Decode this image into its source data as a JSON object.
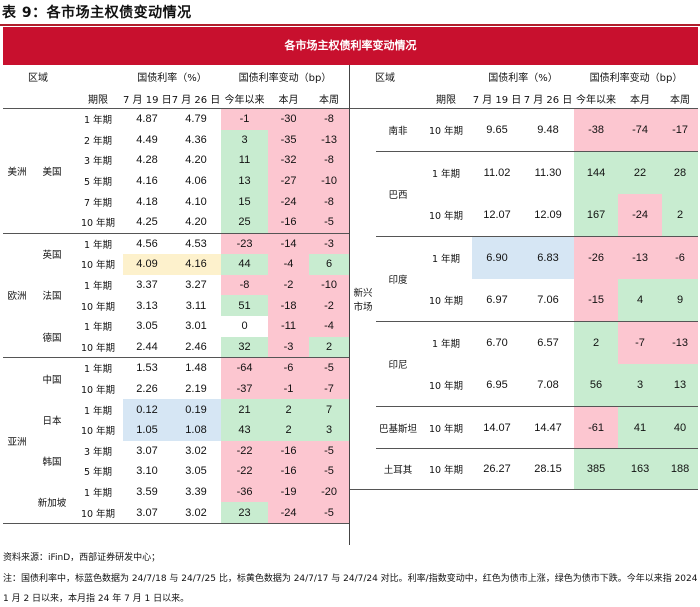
{
  "doc_title": "表 9：各市场主权债变动情况",
  "banner": "各市场主权债利率变动情况",
  "left": {
    "headers": {
      "region": "区域",
      "yield_pct": "国债利率（%）",
      "yield_change": "国债利率变动（bp）",
      "term": "期限",
      "d1": "7 月 19 日",
      "d2": "7 月 26 日",
      "ytd": "今年以来",
      "month": "本月",
      "week": "本周"
    },
    "rows": [
      {
        "cont": "美洲",
        "country": "美国",
        "term": "1 年期",
        "d1": "4.87",
        "d2": "4.79",
        "ytd": "-1",
        "mon": "-30",
        "wk": "-8"
      },
      {
        "term": "2 年期",
        "d1": "4.49",
        "d2": "4.36",
        "ytd": "3",
        "mon": "-35",
        "wk": "-13"
      },
      {
        "term": "3 年期",
        "d1": "4.28",
        "d2": "4.20",
        "ytd": "11",
        "mon": "-32",
        "wk": "-8"
      },
      {
        "term": "5 年期",
        "d1": "4.16",
        "d2": "4.06",
        "ytd": "13",
        "mon": "-27",
        "wk": "-10"
      },
      {
        "term": "7 年期",
        "d1": "4.18",
        "d2": "4.10",
        "ytd": "15",
        "mon": "-24",
        "wk": "-8"
      },
      {
        "term": "10 年期",
        "d1": "4.25",
        "d2": "4.20",
        "ytd": "25",
        "mon": "-16",
        "wk": "-5"
      },
      {
        "cont": "欧洲",
        "country": "英国",
        "term": "1 年期",
        "d1": "4.56",
        "d2": "4.53",
        "ytd": "-23",
        "mon": "-14",
        "wk": "-3"
      },
      {
        "term": "10 年期",
        "d1": "4.09",
        "d2": "4.16",
        "ytd": "44",
        "mon": "-4",
        "wk": "6"
      },
      {
        "country": "法国",
        "term": "1 年期",
        "d1": "3.37",
        "d2": "3.27",
        "ytd": "-8",
        "mon": "-2",
        "wk": "-10"
      },
      {
        "term": "10 年期",
        "d1": "3.13",
        "d2": "3.11",
        "ytd": "51",
        "mon": "-18",
        "wk": "-2"
      },
      {
        "country": "德国",
        "term": "1 年期",
        "d1": "3.05",
        "d2": "3.01",
        "ytd": "0",
        "mon": "-11",
        "wk": "-4"
      },
      {
        "term": "10 年期",
        "d1": "2.44",
        "d2": "2.46",
        "ytd": "32",
        "mon": "-3",
        "wk": "2"
      },
      {
        "cont": "亚洲",
        "country": "中国",
        "term": "1 年期",
        "d1": "1.53",
        "d2": "1.48",
        "ytd": "-64",
        "mon": "-6",
        "wk": "-5"
      },
      {
        "term": "10 年期",
        "d1": "2.26",
        "d2": "2.19",
        "ytd": "-37",
        "mon": "-1",
        "wk": "-7"
      },
      {
        "country": "日本",
        "term": "1 年期",
        "d1": "0.12",
        "d2": "0.19",
        "ytd": "21",
        "mon": "2",
        "wk": "7"
      },
      {
        "term": "10 年期",
        "d1": "1.05",
        "d2": "1.08",
        "ytd": "43",
        "mon": "2",
        "wk": "3"
      },
      {
        "country": "韩国",
        "term": "3 年期",
        "d1": "3.07",
        "d2": "3.02",
        "ytd": "-22",
        "mon": "-16",
        "wk": "-5"
      },
      {
        "term": "5 年期",
        "d1": "3.10",
        "d2": "3.05",
        "ytd": "-22",
        "mon": "-16",
        "wk": "-5"
      },
      {
        "country": "新加坡",
        "term": "1 年期",
        "d1": "3.59",
        "d2": "3.39",
        "ytd": "-36",
        "mon": "-19",
        "wk": "-20"
      },
      {
        "term": "10 年期",
        "d1": "3.07",
        "d2": "3.02",
        "ytd": "23",
        "mon": "-24",
        "wk": "-5"
      }
    ]
  },
  "right": {
    "group": "新兴市场",
    "rows": [
      {
        "country": "南非",
        "term": "10 年期",
        "d1": "9.65",
        "d2": "9.48",
        "ytd": "-38",
        "mon": "-74",
        "wk": "-17"
      },
      {
        "country": "巴西",
        "term": "1 年期",
        "d1": "11.02",
        "d2": "11.30",
        "ytd": "144",
        "mon": "22",
        "wk": "28"
      },
      {
        "term": "10 年期",
        "d1": "12.07",
        "d2": "12.09",
        "ytd": "167",
        "mon": "-24",
        "wk": "2"
      },
      {
        "country": "印度",
        "term": "1 年期",
        "d1": "6.90",
        "d2": "6.83",
        "ytd": "-26",
        "mon": "-13",
        "wk": "-6"
      },
      {
        "term": "10 年期",
        "d1": "6.97",
        "d2": "7.06",
        "ytd": "-15",
        "mon": "4",
        "wk": "9"
      },
      {
        "country": "印尼",
        "term": "1 年期",
        "d1": "6.70",
        "d2": "6.57",
        "ytd": "2",
        "mon": "-7",
        "wk": "-13"
      },
      {
        "term": "10 年期",
        "d1": "6.95",
        "d2": "7.08",
        "ytd": "56",
        "mon": "3",
        "wk": "13"
      },
      {
        "country": "巴基斯坦",
        "term": "10 年期",
        "d1": "14.07",
        "d2": "14.47",
        "ytd": "-61",
        "mon": "41",
        "wk": "40"
      },
      {
        "country": "土耳其",
        "term": "10 年期",
        "d1": "26.27",
        "d2": "28.15",
        "ytd": "385",
        "mon": "163",
        "wk": "188"
      }
    ]
  },
  "notes": {
    "source": "资料来源：iFinD，西部证券研发中心；",
    "note1": "注：国债利率中，标蓝色数据为 24/7/18 与 24/7/25 比，标黄色数据为 24/7/17 与 24/7/24 对比。利率/指数变动中，红色为债市上涨，绿色为债市下跌。今年以来指 2024 年",
    "note2": "1 月 2 日以来，本月指 24 年 7 月 1 日以来。"
  },
  "colors": {
    "banner": "#c8102e",
    "red_cell": "#fcc6d0",
    "green_cell": "#c8ecd0",
    "blue_cell": "#d6e6f4",
    "yellow_cell": "#fdf1cc"
  }
}
